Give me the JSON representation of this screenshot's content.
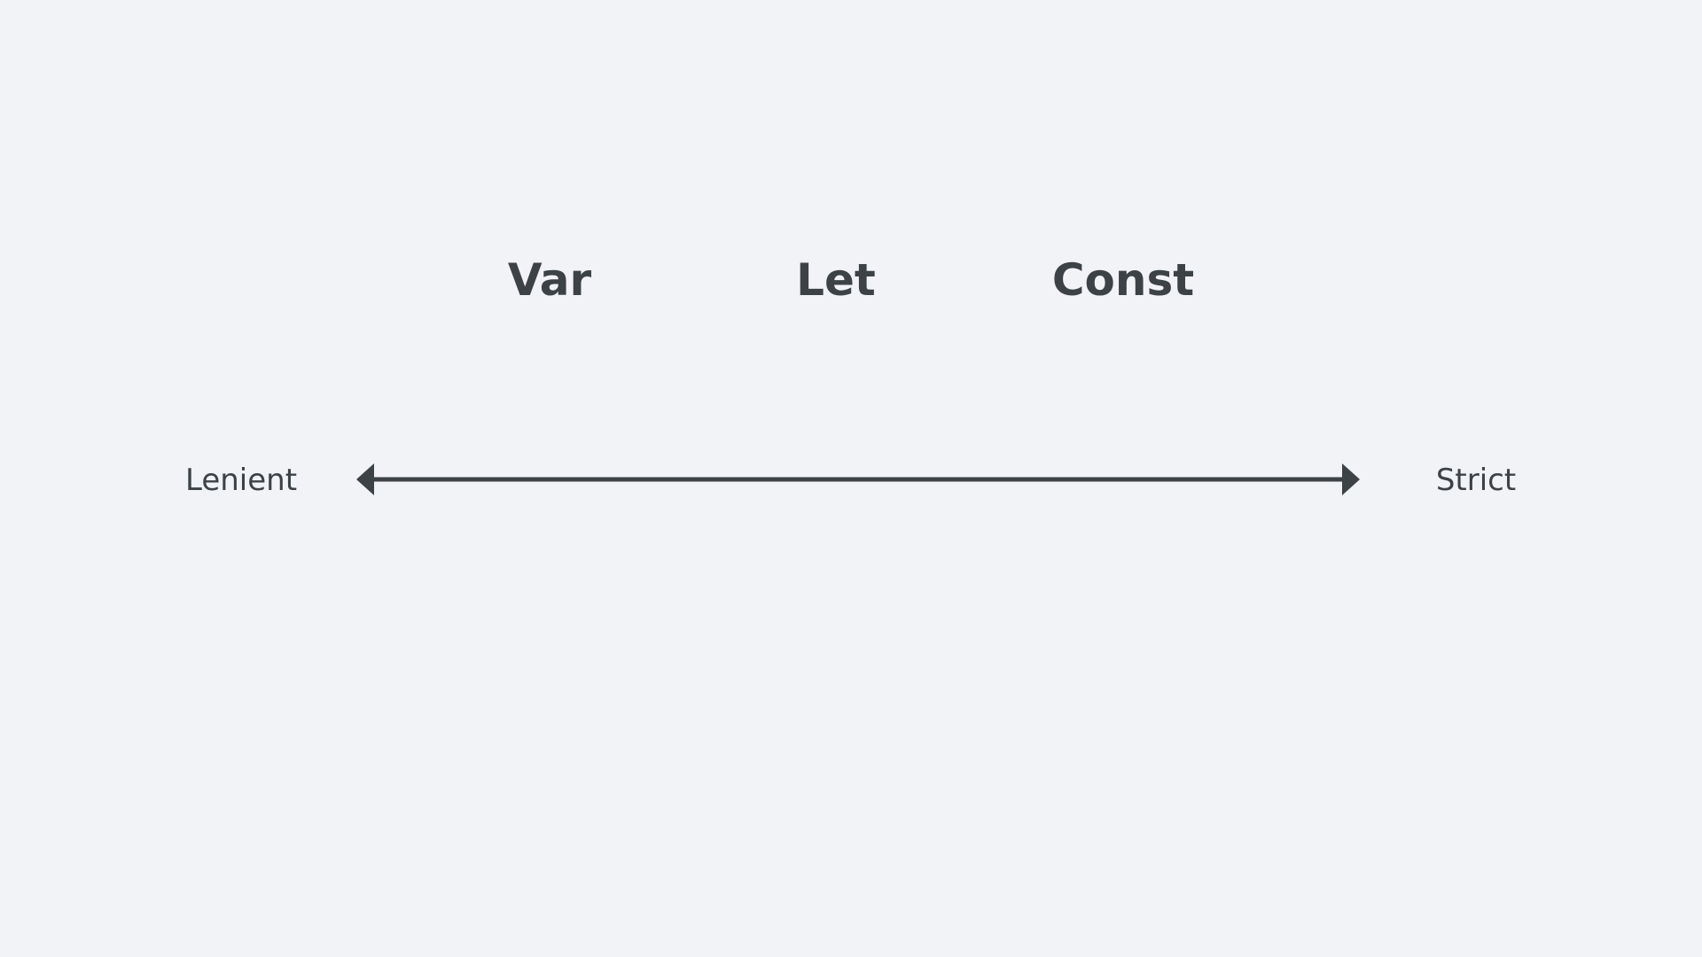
{
  "keywords": [
    "Var",
    "Let",
    "Const"
  ],
  "scale": {
    "left_label": "Lenient",
    "right_label": "Strict"
  },
  "colors": {
    "background": "#f2f3f7",
    "text": "#3d4246",
    "arrow": "#3d4246"
  }
}
